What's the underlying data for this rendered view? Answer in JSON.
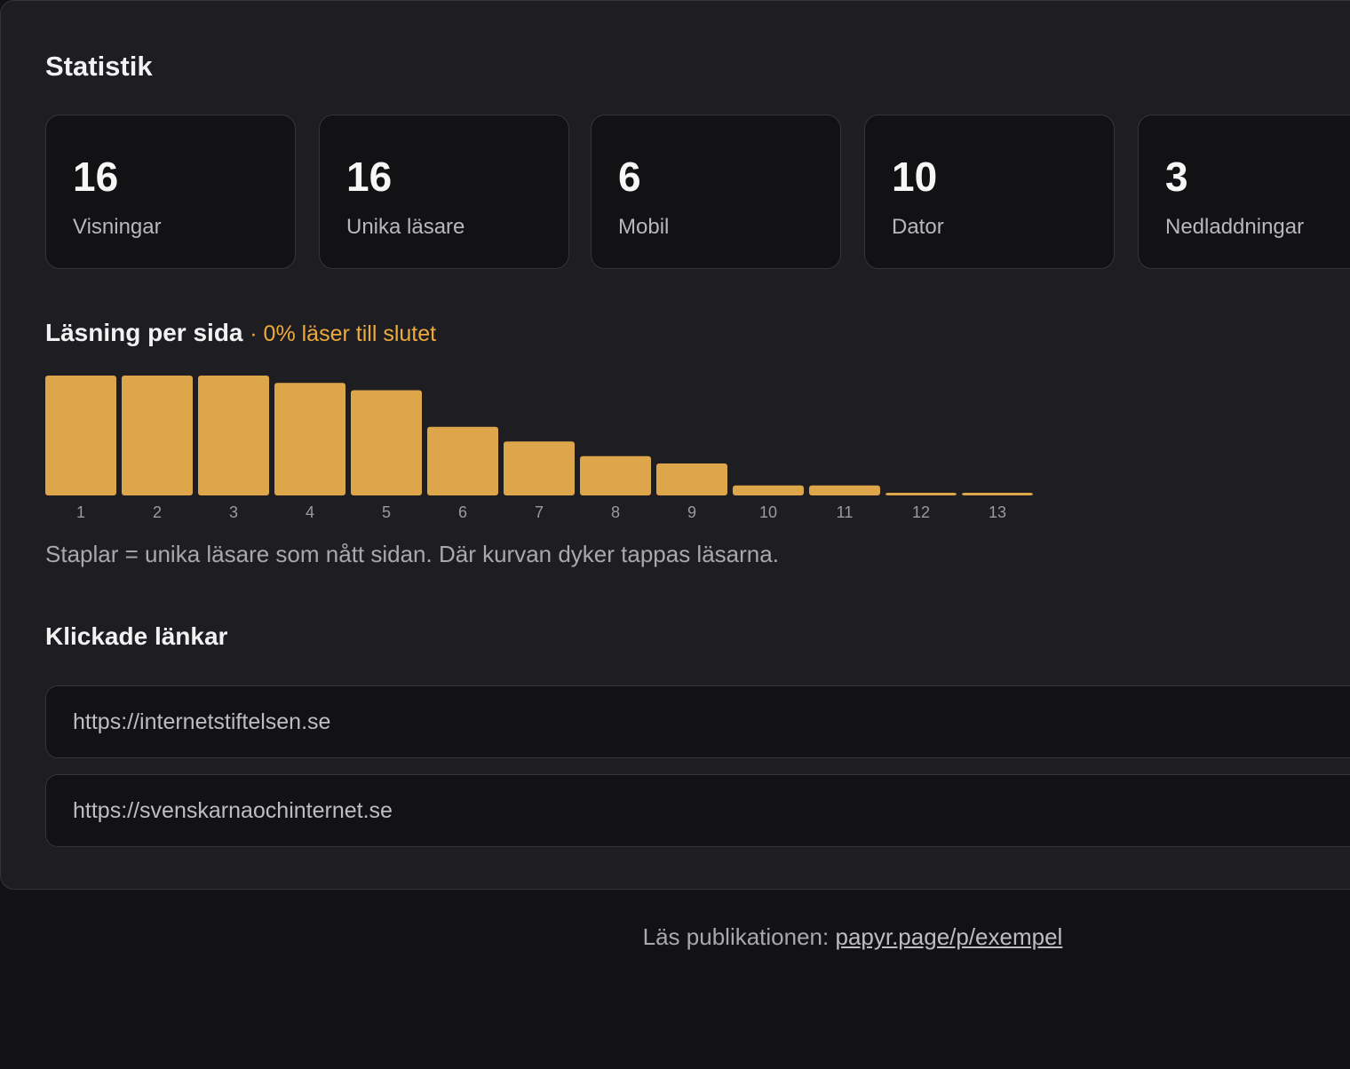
{
  "header": {
    "title": "Statistik"
  },
  "stats": [
    {
      "value": 16,
      "label": "Visningar"
    },
    {
      "value": 16,
      "label": "Unika läsare"
    },
    {
      "value": 6,
      "label": "Mobil"
    },
    {
      "value": 10,
      "label": "Dator"
    },
    {
      "value": 3,
      "label": "Nedladdningar"
    }
  ],
  "chart_data": {
    "type": "bar",
    "title": "Läsning per sida",
    "subtitle": "· 0% läser till slutet",
    "categories": [
      "1",
      "2",
      "3",
      "4",
      "5",
      "6",
      "7",
      "8",
      "9",
      "10",
      "11",
      "12",
      "13"
    ],
    "values": [
      16,
      16,
      16,
      15,
      14,
      9,
      7,
      5,
      4,
      1,
      1,
      0,
      0
    ],
    "color": "#dea64a",
    "caption": "Staplar = unika läsare som nått sidan. Där kurvan dyker tappas läsarna."
  },
  "links": {
    "title": "Klickade länkar",
    "items": [
      "https://internetstiftelsen.se",
      "https://svenskarnaochinternet.se"
    ]
  },
  "footer": {
    "text": "Läs publikationen:",
    "link": "papyr.page/p/exempel"
  }
}
